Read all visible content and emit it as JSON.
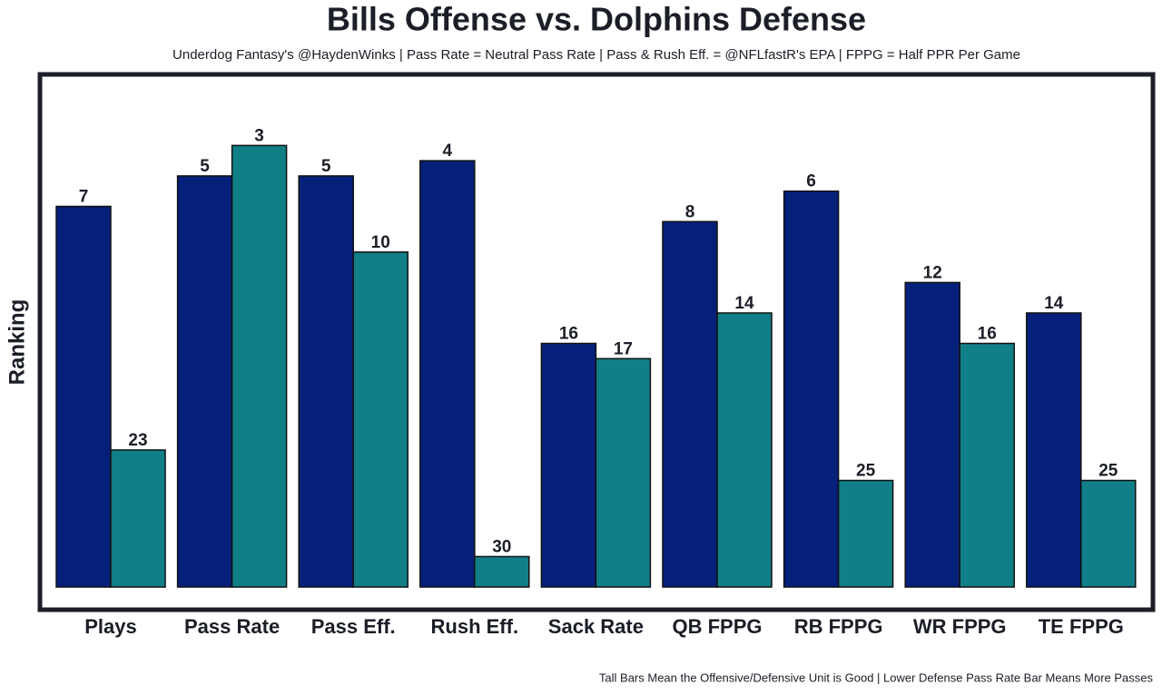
{
  "chart_data": {
    "type": "bar",
    "title": "Bills Offense vs. Dolphins Defense",
    "subtitle": "Underdog Fantasy's @HaydenWinks | Pass Rate = Neutral Pass Rate | Pass & Rush Eff. = @NFLfastR's EPA | FPPG = Half PPR Per Game",
    "y_label": "Ranking",
    "footnote": "Tall Bars Mean the Offensive/Defensive Unit is Good | Lower Defense Pass Rate Bar Means More Passes",
    "categories": [
      "Plays",
      "Pass Rate",
      "Pass Eff.",
      "Rush Eff.",
      "Sack Rate",
      "QB FPPG",
      "RB FPPG",
      "WR FPPG",
      "TE FPPG"
    ],
    "series": [
      {
        "color": "#05207a",
        "values": [
          7,
          5,
          5,
          4,
          16,
          8,
          6,
          12,
          14
        ]
      },
      {
        "color": "#117f87",
        "values": [
          23,
          3,
          10,
          30,
          17,
          14,
          25,
          16,
          25
        ]
      }
    ],
    "ylim": [
      32,
      0
    ]
  }
}
